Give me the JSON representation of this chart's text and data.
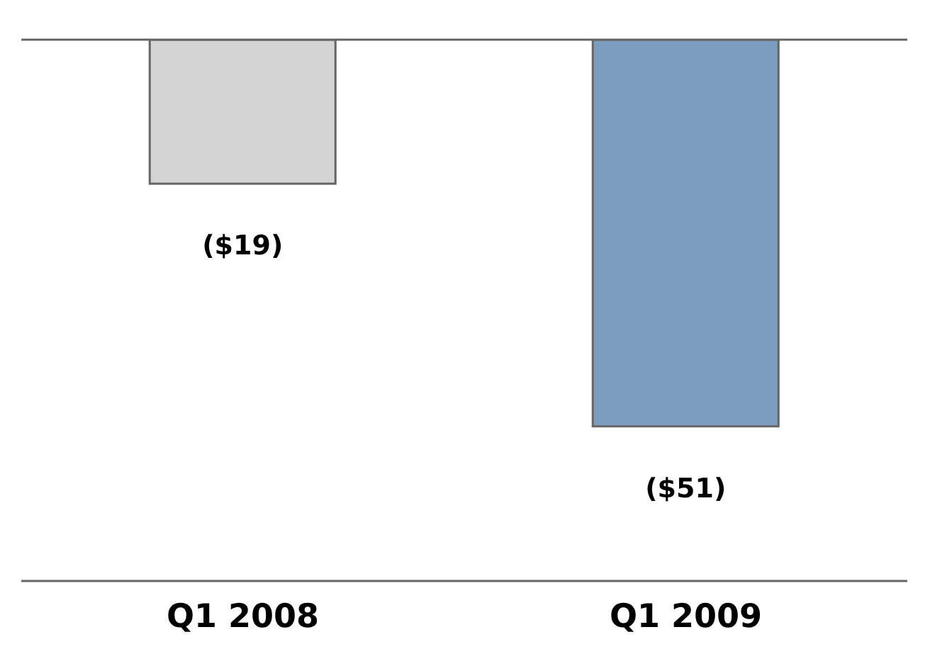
{
  "chart_data": {
    "type": "bar",
    "categories": [
      "Q1 2008",
      "Q1 2009"
    ],
    "values": [
      -19,
      -51
    ],
    "value_labels": [
      "($19)",
      "($51)"
    ],
    "colors": [
      "#d4d4d4",
      "#7c9dc0"
    ]
  }
}
